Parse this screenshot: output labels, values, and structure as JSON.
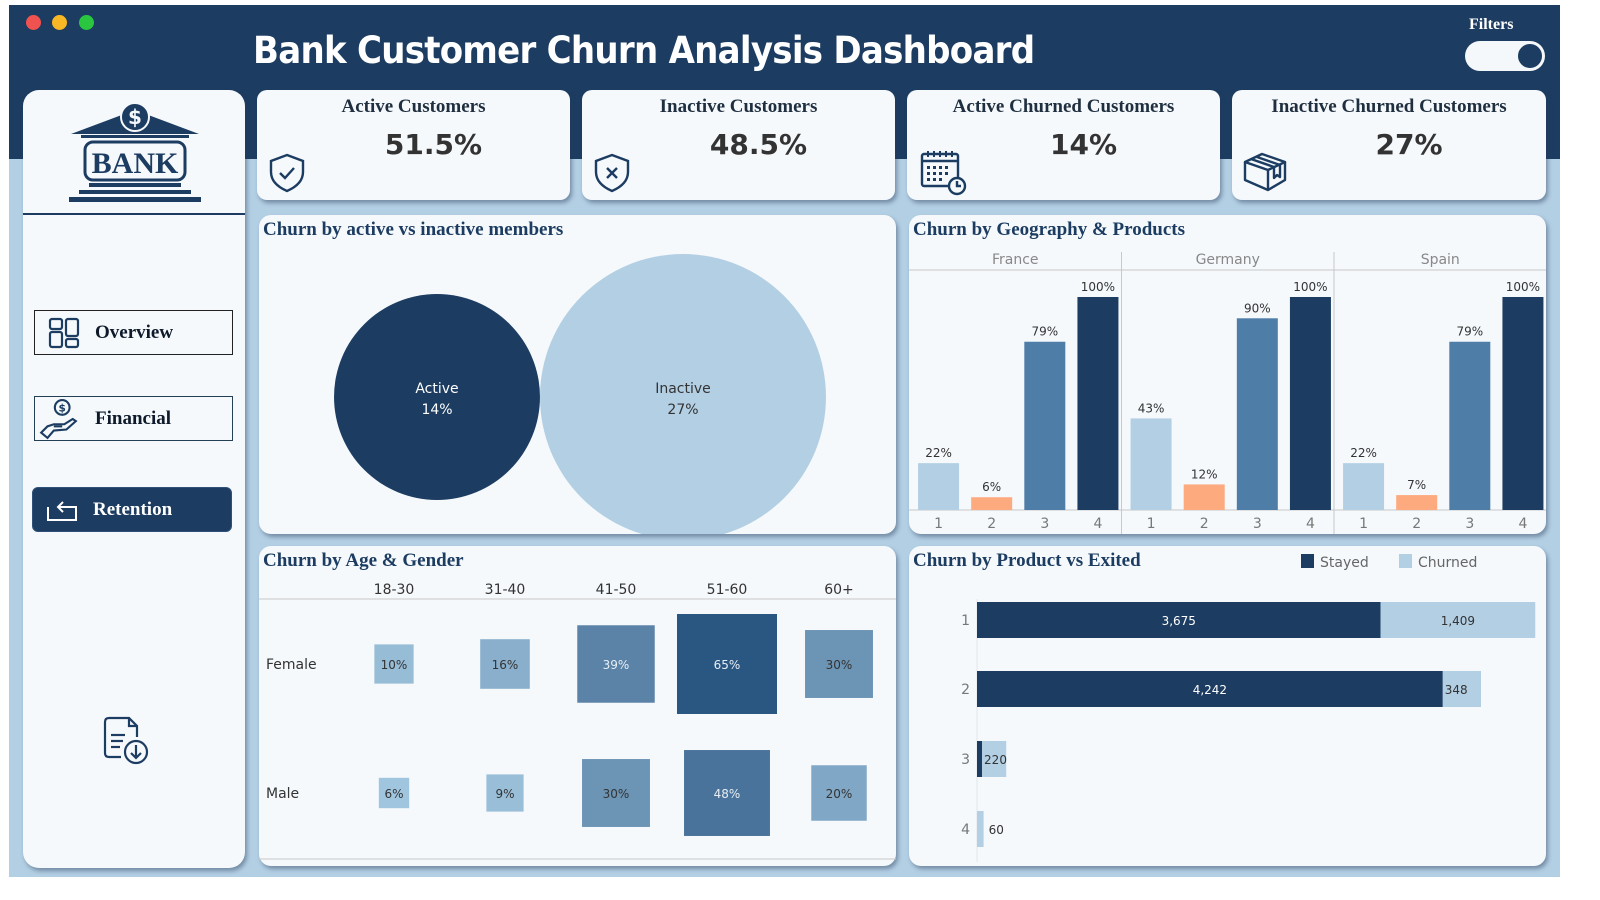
{
  "window": {
    "controls": [
      "close",
      "minimize",
      "maximize"
    ]
  },
  "header": {
    "title": "Bank Customer Churn Analysis Dashboard",
    "filters_label": "Filters",
    "filters_toggle_on": true
  },
  "sidebar": {
    "logo_text": "BANK",
    "logo_icon": "bank-building-dollar-icon",
    "nav": [
      {
        "label": "Overview",
        "icon": "dashboard-grid-icon",
        "active": false
      },
      {
        "label": "Financial",
        "icon": "hand-coin-icon",
        "active": false
      },
      {
        "label": "Retention",
        "icon": "return-arrow-icon",
        "active": true
      }
    ],
    "download_icon": "document-download-icon"
  },
  "kpis": [
    {
      "title": "Active Customers",
      "value": "51.5%",
      "icon": "shield-check-icon"
    },
    {
      "title": "Inactive Customers",
      "value": "48.5%",
      "icon": "shield-x-icon"
    },
    {
      "title": "Active Churned Customers",
      "value": "14%",
      "icon": "calendar-clock-icon"
    },
    {
      "title": "Inactive Churned Customers",
      "value": "27%",
      "icon": "package-box-icon"
    }
  ],
  "colors": {
    "navy": "#1c3c61",
    "light_blue": "#b3cfe4",
    "mid_blue": "#4e7ea8",
    "orange": "#fdaa7e",
    "panel_bg": "#f5f9fc"
  },
  "chart_data": [
    {
      "id": "churn_active_inactive",
      "type": "bubble",
      "title": "Churn by active vs inactive members",
      "categories": [
        "Active",
        "Inactive"
      ],
      "values": [
        14,
        27
      ],
      "labels": [
        "14%",
        "27%"
      ],
      "colors": [
        "#1c3c61",
        "#b3cfe4"
      ]
    },
    {
      "id": "churn_geo_products",
      "type": "bar",
      "title": "Churn by Geography & Products",
      "groups": [
        "France",
        "Germany",
        "Spain"
      ],
      "categories": [
        "1",
        "2",
        "3",
        "4"
      ],
      "series": [
        {
          "name": "France",
          "values": [
            22,
            6,
            79,
            100
          ],
          "labels": [
            "22%",
            "6%",
            "79%",
            "100%"
          ]
        },
        {
          "name": "Germany",
          "values": [
            43,
            12,
            90,
            100
          ],
          "labels": [
            "43%",
            "12%",
            "90%",
            "100%"
          ]
        },
        {
          "name": "Spain",
          "values": [
            22,
            7,
            79,
            100
          ],
          "labels": [
            "22%",
            "7%",
            "79%",
            "100%"
          ]
        }
      ],
      "bar_colors": [
        "#b3cfe4",
        "#fdaa7e",
        "#4e7ea8",
        "#1c3c61"
      ],
      "ylim": [
        0,
        100
      ],
      "xlabel": "",
      "ylabel": ""
    },
    {
      "id": "churn_age_gender",
      "type": "heatmap",
      "title": "Churn by Age & Gender",
      "columns": [
        "18-30",
        "31-40",
        "41-50",
        "51-60",
        "60+"
      ],
      "rows": [
        "Female",
        "Male"
      ],
      "values": [
        [
          10,
          16,
          39,
          65,
          30
        ],
        [
          6,
          9,
          30,
          48,
          20
        ]
      ],
      "labels": [
        [
          "10%",
          "16%",
          "39%",
          "65%",
          "30%"
        ],
        [
          "6%",
          "9%",
          "30%",
          "48%",
          "20%"
        ]
      ]
    },
    {
      "id": "churn_product_exited",
      "type": "bar",
      "orientation": "horizontal",
      "stacked": true,
      "title": "Churn by Product vs Exited",
      "categories": [
        "1",
        "2",
        "3",
        "4"
      ],
      "series": [
        {
          "name": "Stayed",
          "values": [
            3675,
            4242,
            46,
            0
          ],
          "labels": [
            "3,675",
            "4,242",
            "",
            ""
          ],
          "color": "#1c3c61"
        },
        {
          "name": "Churned",
          "values": [
            1409,
            348,
            220,
            60
          ],
          "labels": [
            "1,409",
            "348",
            "220",
            "60"
          ],
          "color": "#b3cfe4"
        }
      ],
      "legend": [
        "Stayed",
        "Churned"
      ],
      "legend_position": "top-right",
      "xlim": [
        0,
        5100
      ]
    }
  ]
}
